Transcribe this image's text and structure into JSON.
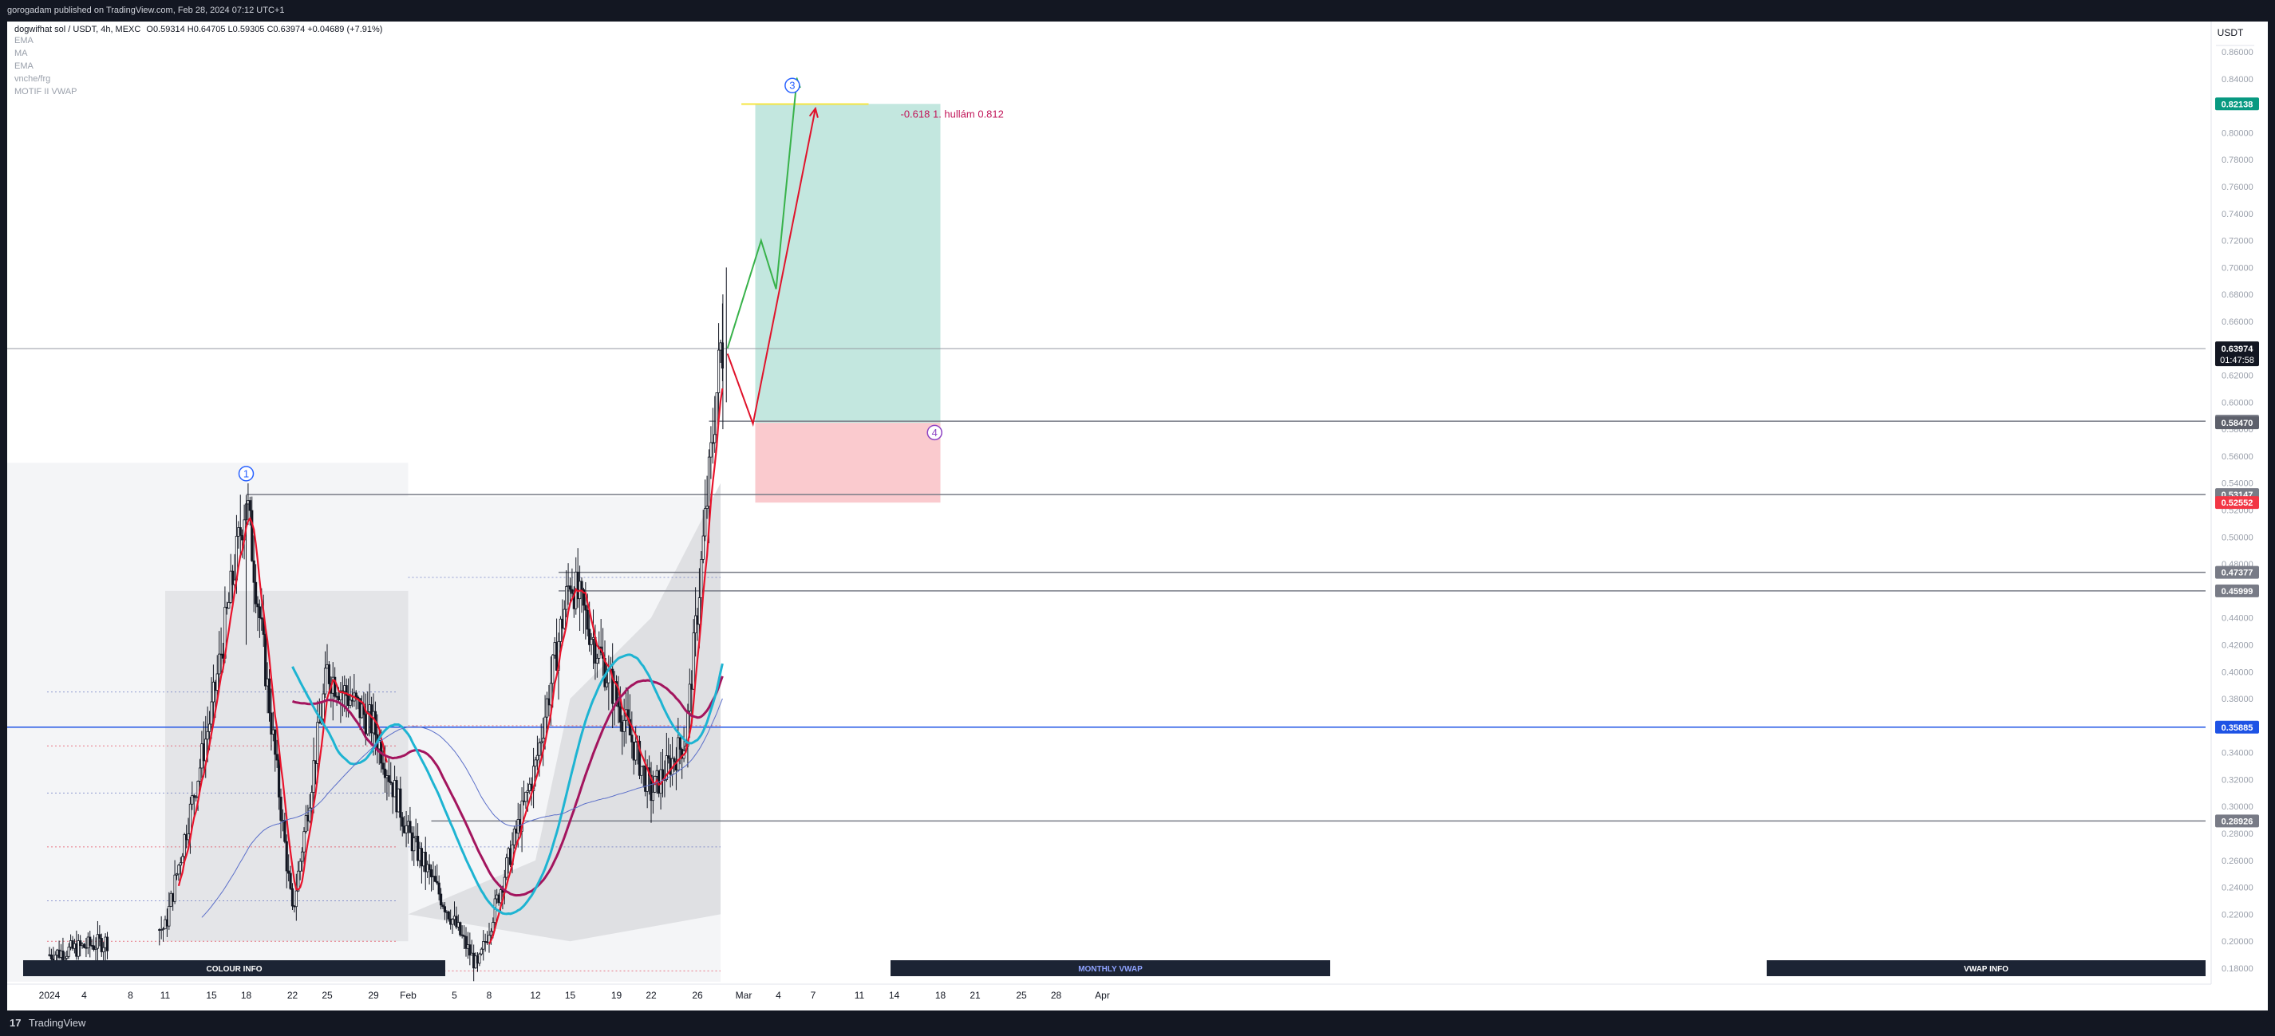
{
  "header": {
    "publish_text": "gorogadam published on TradingView.com, Feb 28, 2024 07:12 UTC+1"
  },
  "legend": {
    "symbol": "dogwifhat sol / USDT, 4h, MEXC",
    "ohlc": "O0.59314 H0.64705 L0.59305 C0.63974 +0.04689 (+7.91%)",
    "indicators": [
      "EMA",
      "MA",
      "EMA",
      "vnche/frg",
      "MOTIF II VWAP"
    ]
  },
  "footer": {
    "logo_mark": "17",
    "brand": "TradingView"
  },
  "colors": {
    "background": "#ffffff",
    "frame": "#131722",
    "ema_fast": "#e8132b",
    "ema_slow": "#a3155e",
    "ema_cyan": "#1eb4d2",
    "vwap_thin": "#5b6fc9",
    "horizontal_blue": "#1e53e5",
    "target_zone": "#b8e3d9",
    "stop_zone": "#f9c1c6",
    "wave_green": "#38b24a",
    "wave_red": "#e0132b",
    "marker_blue": "#2962ff",
    "marker_purple": "#8e44c4"
  },
  "chart_data": {
    "type": "candlestick",
    "currency_label": "USDT",
    "ylim": [
      0.17,
      0.87
    ],
    "y_ticks": [
      "0.86000",
      "0.84000",
      "0.82000",
      "0.80000",
      "0.78000",
      "0.76000",
      "0.74000",
      "0.72000",
      "0.70000",
      "0.68000",
      "0.66000",
      "0.64000",
      "0.62000",
      "0.60000",
      "0.58000",
      "0.56000",
      "0.54000",
      "0.52000",
      "0.50000",
      "0.48000",
      "0.46000",
      "0.44000",
      "0.42000",
      "0.40000",
      "0.38000",
      "0.36000",
      "0.34000",
      "0.32000",
      "0.30000",
      "0.28000",
      "0.26000",
      "0.24000",
      "0.22000",
      "0.20000",
      "0.18000"
    ],
    "x_ticks": [
      "2024",
      "4",
      "8",
      "11",
      "15",
      "18",
      "22",
      "25",
      "29",
      "Feb",
      "5",
      "8",
      "12",
      "15",
      "19",
      "22",
      "26",
      "Mar",
      "4",
      "7",
      "11",
      "14",
      "18",
      "21",
      "25",
      "28",
      "Apr"
    ],
    "current_price": {
      "value": "0.63974",
      "countdown": "01:47:58"
    },
    "price_labels": [
      {
        "value": "0.82138",
        "color": "#089981",
        "price": 0.82138
      },
      {
        "value": "0.58588",
        "color": "#787b86",
        "price": 0.58588
      },
      {
        "value": "0.58470",
        "color": "#5d606b",
        "price": 0.5847
      },
      {
        "value": "0.53147",
        "color": "#787b86",
        "price": 0.53147
      },
      {
        "value": "0.52552",
        "color": "#f23645",
        "price": 0.52552
      },
      {
        "value": "0.47377",
        "color": "#787b86",
        "price": 0.47377
      },
      {
        "value": "0.45999",
        "color": "#787b86",
        "price": 0.45999
      },
      {
        "value": "0.35885",
        "color": "#1e53e5",
        "price": 0.35885
      },
      {
        "value": "0.28926",
        "color": "#787b86",
        "price": 0.28926
      }
    ],
    "horizontal_levels": [
      0.63974,
      0.58588,
      0.53147,
      0.47377,
      0.45999,
      0.35885,
      0.28926
    ],
    "position": {
      "entry": 0.5847,
      "target": 0.82138,
      "stop": 0.52552
    },
    "fib_annotation": "-0.618 1. hullám 0.812",
    "fib_price": 0.8212,
    "wave_labels": [
      "1",
      "3",
      "4"
    ],
    "info_boxes": [
      "COLOUR INFO",
      "MONTHLY VWAP",
      "VWAP INFO"
    ],
    "green_projection": [
      [
        0.64,
        0.64
      ],
      [
        0.7,
        0.72
      ],
      [
        0.68,
        0.684
      ],
      [
        0.736,
        0.84
      ]
    ],
    "red_projection": [
      [
        0.64,
        0.636
      ],
      [
        0.66,
        0.584
      ],
      [
        0.74,
        0.818
      ]
    ],
    "key_prices": [
      {
        "date": "2024-01-01",
        "price": 0.19
      },
      {
        "date": "2024-01-11",
        "price": 0.21
      },
      {
        "date": "2024-01-15",
        "price": 0.37
      },
      {
        "date": "2024-01-18",
        "price": 0.531
      },
      {
        "date": "2024-01-22",
        "price": 0.22
      },
      {
        "date": "2024-01-25",
        "price": 0.4
      },
      {
        "date": "2024-01-29",
        "price": 0.36
      },
      {
        "date": "2024-02-01",
        "price": 0.28
      },
      {
        "date": "2024-02-07",
        "price": 0.18
      },
      {
        "date": "2024-02-12",
        "price": 0.33
      },
      {
        "date": "2024-02-15",
        "price": 0.47
      },
      {
        "date": "2024-02-19",
        "price": 0.38
      },
      {
        "date": "2024-02-22",
        "price": 0.31
      },
      {
        "date": "2024-02-25",
        "price": 0.35
      },
      {
        "date": "2024-02-28",
        "price": 0.64
      }
    ]
  }
}
